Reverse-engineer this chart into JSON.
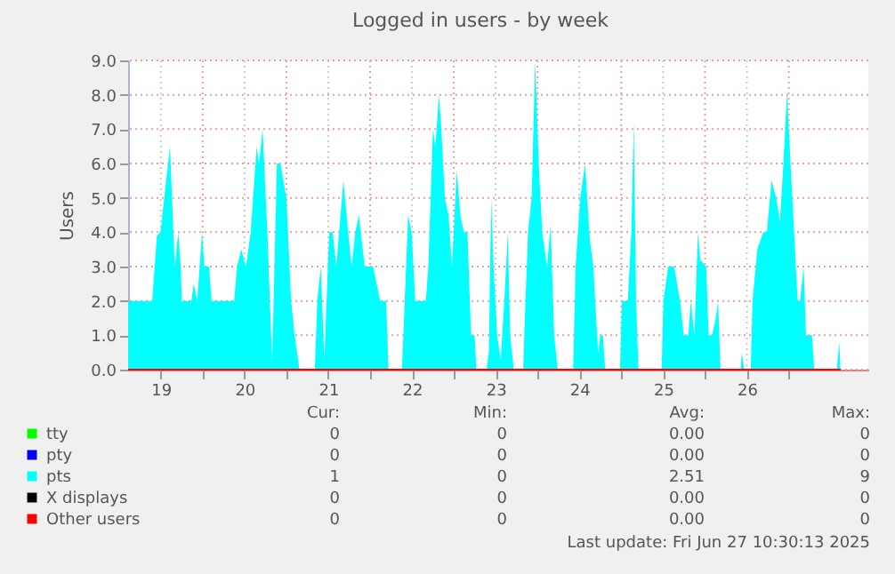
{
  "chart_data": {
    "type": "area",
    "title": "Logged in users - by week",
    "ylabel": "Users",
    "xlim": [
      19.11,
      27.95
    ],
    "xticks": [
      {
        "value": 19.5,
        "label": "19"
      },
      {
        "value": 20,
        "label": null
      },
      {
        "value": 20.5,
        "label": "20"
      },
      {
        "value": 21,
        "label": null
      },
      {
        "value": 21.5,
        "label": "21"
      },
      {
        "value": 22,
        "label": null
      },
      {
        "value": 22.5,
        "label": "22"
      },
      {
        "value": 23,
        "label": null
      },
      {
        "value": 23.5,
        "label": "23"
      },
      {
        "value": 24,
        "label": null
      },
      {
        "value": 24.5,
        "label": "24"
      },
      {
        "value": 25,
        "label": null
      },
      {
        "value": 25.5,
        "label": "25"
      },
      {
        "value": 26,
        "label": null
      },
      {
        "value": 26.5,
        "label": "26"
      },
      {
        "value": 27,
        "label": null
      }
    ],
    "ylim": [
      0,
      9.0
    ],
    "yticks": [
      {
        "value": 0,
        "label": "0.0"
      },
      {
        "value": 1,
        "label": "1.0"
      },
      {
        "value": 2,
        "label": "2.0"
      },
      {
        "value": 3,
        "label": "3.0"
      },
      {
        "value": 4,
        "label": "4.0"
      },
      {
        "value": 5,
        "label": "5.0"
      },
      {
        "value": 6,
        "label": "6.0"
      },
      {
        "value": 7,
        "label": "7.0"
      },
      {
        "value": 8,
        "label": "8.0"
      },
      {
        "value": 9,
        "label": "9.0"
      }
    ],
    "grid": true,
    "legend": "bottom",
    "series": [
      {
        "name": "tty",
        "color": "#00ff00"
      },
      {
        "name": "pty",
        "color": "#0000ff"
      },
      {
        "name": "pts",
        "color": "#00ffff",
        "x": [
          19.113,
          19.397,
          19.454,
          19.496,
          19.61,
          19.667,
          19.709,
          19.738,
          19.752,
          19.865,
          19.894,
          19.936,
          19.993,
          20.021,
          20.078,
          20.106,
          20.376,
          20.411,
          20.461,
          20.518,
          20.574,
          20.645,
          20.674,
          20.716,
          20.773,
          20.83,
          20.887,
          20.929,
          21.0,
          21.057,
          21.099,
          21.156,
          21.34,
          21.369,
          21.411,
          21.454,
          21.511,
          21.553,
          21.596,
          21.681,
          21.738,
          21.78,
          21.823,
          21.865,
          21.936,
          22.035,
          22.121,
          22.191,
          22.22,
          22.38,
          22.397,
          22.454,
          22.496,
          22.539,
          22.666,
          22.695,
          22.751,
          22.78,
          22.822,
          22.851,
          22.893,
          22.936,
          22.978,
          23.035,
          23.078,
          23.12,
          23.163,
          23.205,
          23.248,
          23.269,
          23.39,
          23.418,
          23.446,
          23.475,
          23.517,
          23.56,
          23.603,
          23.645,
          23.673,
          23.716,
          23.829,
          23.844,
          23.886,
          23.929,
          23.971,
          24.014,
          24.056,
          24.113,
          24.156,
          24.198,
          24.241,
          24.425,
          24.454,
          24.51,
          24.567,
          24.624,
          24.666,
          24.723,
          24.751,
          24.78,
          24.808,
          24.985,
          25.007,
          25.078,
          25.12,
          25.149,
          25.177,
          25.205,
          25.482,
          25.503,
          25.56,
          25.588,
          25.631,
          25.702,
          25.745,
          25.801,
          25.83,
          25.873,
          25.915,
          25.943,
          26.014,
          26.043,
          26.085,
          26.128,
          26.156,
          26.185,
          26.426,
          26.44,
          26.468,
          26.546,
          26.567,
          26.624,
          26.695,
          26.738,
          26.794,
          26.851,
          26.894,
          26.936,
          26.979,
          27.021,
          27.064,
          27.106,
          27.135,
          27.177,
          27.206,
          27.248,
          27.277,
          27.305,
          27.574,
          27.603,
          27.617
        ],
        "values": [
          2,
          2,
          3.9,
          4,
          6.5,
          3,
          4,
          3,
          2,
          2,
          2.5,
          2,
          4,
          3,
          3,
          2,
          2,
          3,
          3.5,
          3,
          4,
          6.5,
          6,
          7,
          4,
          0.2,
          6,
          6,
          5,
          2,
          1,
          0,
          0,
          2,
          3,
          0.3,
          4,
          4,
          3,
          5.5,
          4,
          3,
          4,
          4.5,
          3,
          3,
          2,
          2,
          0,
          0,
          1,
          4.5,
          4,
          2,
          2,
          3,
          7,
          6.5,
          8,
          7,
          5,
          4.5,
          3,
          5.8,
          4.5,
          4,
          4,
          1,
          1,
          0,
          0,
          0.5,
          5,
          3,
          1,
          0.3,
          2,
          4,
          1,
          0,
          0,
          1.2,
          4,
          5,
          9,
          6,
          4,
          3,
          4.2,
          1,
          0,
          0,
          3,
          5,
          6,
          3.8,
          3,
          0.5,
          1,
          1,
          0,
          0,
          2,
          2,
          4,
          7.2,
          2,
          0,
          0,
          2,
          3,
          3,
          3,
          2,
          1,
          1,
          2,
          1,
          4,
          3.2,
          3,
          1,
          1,
          1.5,
          2,
          0,
          0,
          0.5,
          0,
          0,
          2,
          3.5,
          4,
          4,
          5.5,
          5,
          4.3,
          6,
          8.1,
          6,
          4,
          2,
          2,
          3,
          1,
          1,
          1,
          0,
          0,
          0.8,
          0
        ]
      },
      {
        "name": "X displays",
        "color": "#000000"
      },
      {
        "name": "Other users",
        "color": "#ff0000",
        "type": "line",
        "x": [
          19.11,
          27.62
        ],
        "values": [
          0,
          0
        ]
      }
    ],
    "annotations": [
      "Cur:",
      "Min:",
      "Avg:",
      "Max:",
      "0",
      "0",
      "0.00",
      "0",
      "0",
      "0",
      "0.00",
      "0",
      "1",
      "0",
      "2.51",
      "9",
      "0",
      "0",
      "0.00",
      "0",
      "0",
      "0",
      "0.00",
      "0",
      "Last update: Fri Jun 27 10:30:13 2025"
    ]
  }
}
